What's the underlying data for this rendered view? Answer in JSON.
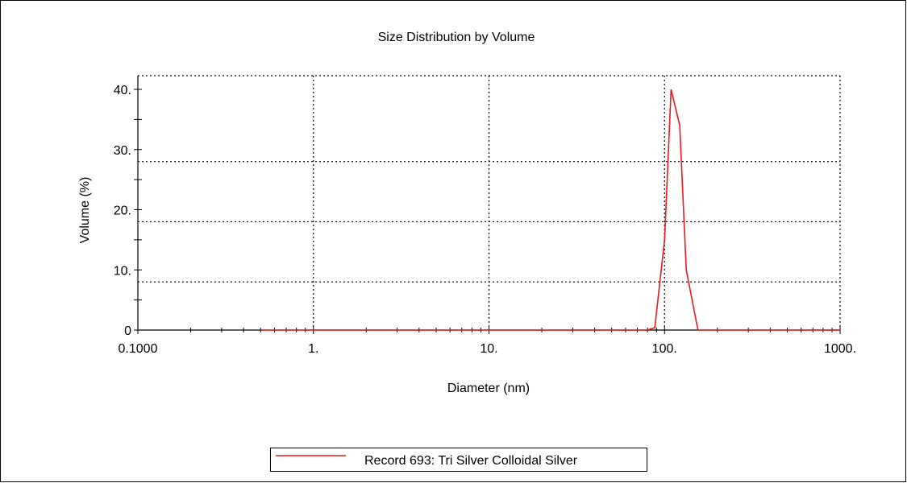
{
  "chart_data": {
    "type": "line",
    "title": "Size Distribution by Volume",
    "xlabel": "Diameter (nm)",
    "ylabel": "Volume (%)",
    "x_scale": "log",
    "xlim": [
      0.1,
      1000
    ],
    "ylim": [
      0,
      40
    ],
    "x_ticks": [
      {
        "value": 0.1,
        "label": "0.1000"
      },
      {
        "value": 1,
        "label": "1."
      },
      {
        "value": 10,
        "label": "10."
      },
      {
        "value": 100,
        "label": "100."
      },
      {
        "value": 1000,
        "label": "1000."
      }
    ],
    "y_ticks": [
      {
        "value": 0,
        "label": "0"
      },
      {
        "value": 10,
        "label": "10."
      },
      {
        "value": 20,
        "label": "20."
      },
      {
        "value": 30,
        "label": "30."
      },
      {
        "value": 40,
        "label": "40."
      }
    ],
    "grid": "dotted",
    "legend_position": "bottom-center",
    "series": [
      {
        "name": "Record 693: Tri Silver Colloidal Silver",
        "color": "#e8191a",
        "x": [
          0.5,
          50,
          80,
          88,
          100,
          109,
          122,
          133,
          155,
          1000
        ],
        "y": [
          0,
          0,
          0,
          0.4,
          15,
          40,
          34,
          10,
          0,
          0
        ]
      }
    ]
  }
}
